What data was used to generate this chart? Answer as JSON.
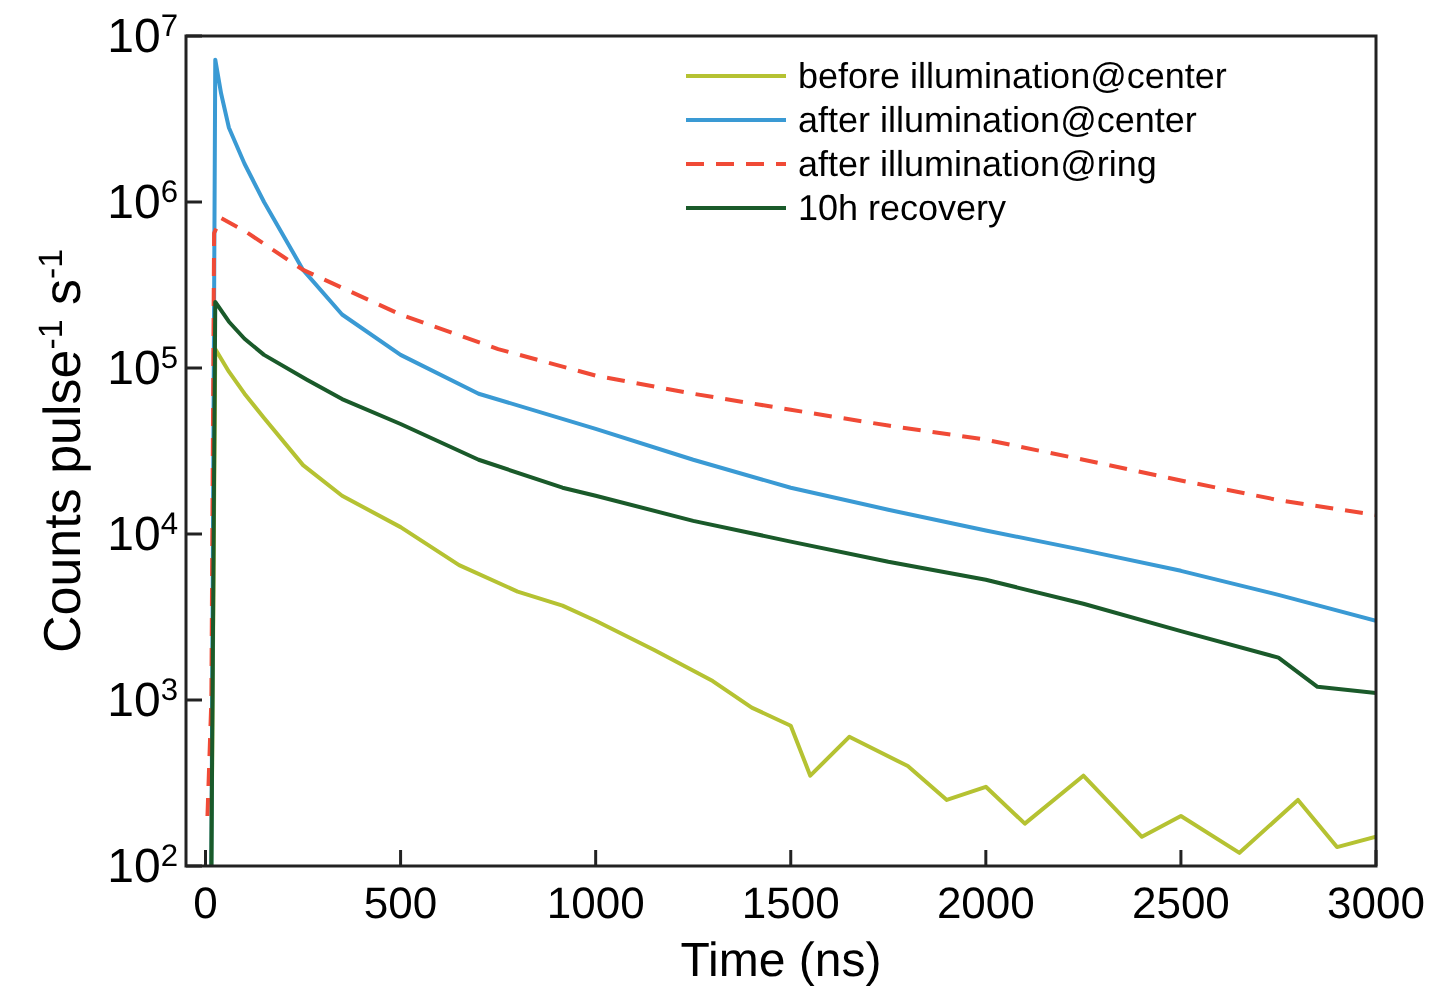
{
  "chart_data": {
    "type": "line",
    "xlabel": "Time (ns)",
    "ylabel": "Counts pulse$^{-1}$ s$^{-1}$",
    "log": "y",
    "xlim": [
      -50,
      3000
    ],
    "ylim": [
      100,
      10000000
    ],
    "xticks": [
      0,
      500,
      1000,
      1500,
      2000,
      2500,
      3000
    ],
    "yticks": [
      {
        "value": 100,
        "label": "10$^{2}$"
      },
      {
        "value": 1000,
        "label": "10$^{3}$"
      },
      {
        "value": 10000,
        "label": "10$^{4}$"
      },
      {
        "value": 100000,
        "label": "10$^{5}$"
      },
      {
        "value": 1000000,
        "label": "10$^{6}$"
      },
      {
        "value": 10000000,
        "label": "10$^{7}$"
      }
    ],
    "grid": false,
    "legend": "top right",
    "line_style": "solid",
    "series": [
      {
        "name": "before illumination@center",
        "color": "#b5c232",
        "x": [
          15,
          25,
          60,
          100,
          150,
          250,
          350,
          500,
          650,
          800,
          915,
          1000,
          1150,
          1300,
          1400,
          1500,
          1550,
          1650,
          1800,
          1900,
          2000,
          2100,
          2250,
          2400,
          2500,
          2650,
          2800,
          2900,
          3000
        ],
        "values": [
          100,
          130000,
          95000,
          70000,
          50000,
          26000,
          17000,
          11000,
          6500,
          4500,
          3700,
          3000,
          2000,
          1300,
          900,
          700,
          350,
          600,
          400,
          250,
          300,
          180,
          350,
          150,
          200,
          120,
          250,
          130,
          150
        ]
      },
      {
        "name": "after illumination@center",
        "color": "#3a9ad4",
        "x": [
          15,
          25,
          40,
          60,
          100,
          150,
          250,
          350,
          500,
          700,
          1000,
          1250,
          1500,
          1750,
          2000,
          2250,
          2500,
          2750,
          3000
        ],
        "values": [
          100,
          7200000,
          4500000,
          2800000,
          1700000,
          1000000,
          390000,
          210000,
          120000,
          70000,
          43000,
          28000,
          19000,
          14000,
          10500,
          8000,
          6000,
          4300,
          3000
        ]
      },
      {
        "name": "after illumination@ring",
        "color": "#f04a36",
        "line_style": "dashed",
        "x": [
          5,
          15,
          22,
          40,
          100,
          250,
          500,
          750,
          1000,
          1250,
          1500,
          1750,
          2000,
          2250,
          2500,
          2750,
          3000
        ],
        "values": [
          200,
          1000,
          650000,
          800000,
          670000,
          390000,
          210000,
          130000,
          90000,
          70000,
          56000,
          45000,
          37000,
          28000,
          21000,
          16000,
          13000
        ]
      },
      {
        "name": "10h recovery",
        "color": "#1a5a2a",
        "x": [
          15,
          25,
          60,
          100,
          150,
          260,
          350,
          500,
          700,
          915,
          1000,
          1250,
          1500,
          1750,
          2000,
          2250,
          2500,
          2750,
          2850,
          3000
        ],
        "values": [
          100,
          250000,
          190000,
          150000,
          120000,
          85000,
          65000,
          46000,
          28000,
          19000,
          17000,
          12000,
          9000,
          6800,
          5300,
          3800,
          2600,
          1800,
          1200,
          1100
        ]
      }
    ]
  }
}
